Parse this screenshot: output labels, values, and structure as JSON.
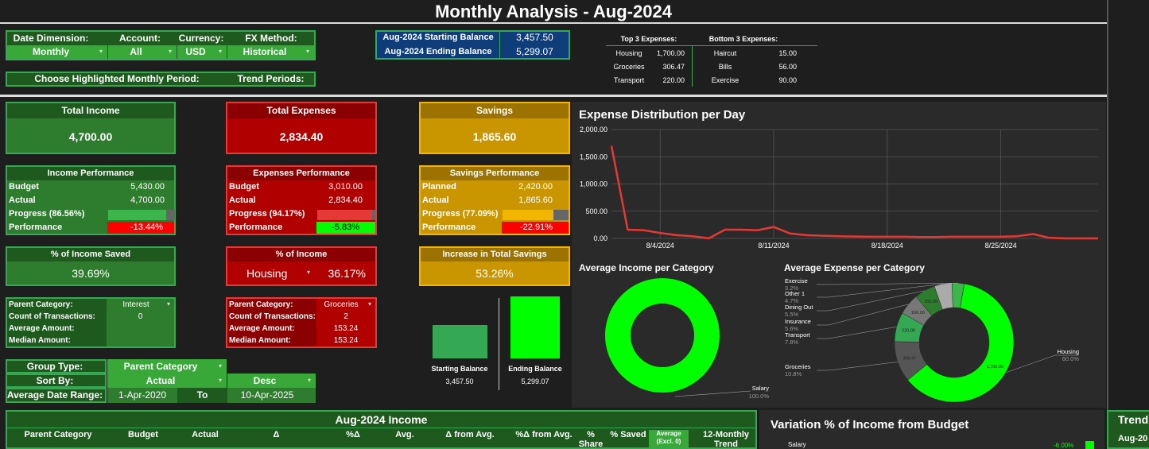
{
  "title": "Monthly Analysis - Aug-2024",
  "filters": {
    "date_dimension_label": "Date Dimension:",
    "date_dimension_value": "Monthly",
    "account_label": "Account:",
    "account_value": "All",
    "currency_label": "Currency:",
    "currency_value": "USD",
    "fx_label": "FX Method:",
    "fx_value": "Historical",
    "highlight_label": "Choose Highlighted Monthly Period:",
    "trend_label": "Trend Periods:"
  },
  "balance": {
    "start_label": "Aug-2024 Starting Balance",
    "start_value": "3,457.50",
    "end_label": "Aug-2024 Ending Balance",
    "end_value": "5,299.07"
  },
  "top3": {
    "label": "Top 3 Expenses:",
    "items": [
      {
        "name": "Housing",
        "value": "1,700.00"
      },
      {
        "name": "Groceries",
        "value": "306.47"
      },
      {
        "name": "Transport",
        "value": "220.00"
      }
    ]
  },
  "bottom3": {
    "label": "Bottom 3 Expenses:",
    "items": [
      {
        "name": "Haircut",
        "value": "15.00"
      },
      {
        "name": "Bills",
        "value": "56.00"
      },
      {
        "name": "Exercise",
        "value": "90.00"
      }
    ]
  },
  "totals": {
    "income_label": "Total Income",
    "income_value": "4,700.00",
    "expenses_label": "Total Expenses",
    "expenses_value": "2,834.40",
    "savings_label": "Savings",
    "savings_value": "1,865.60"
  },
  "income_perf": {
    "title": "Income Performance",
    "budget_label": "Budget",
    "budget_value": "5,430.00",
    "actual_label": "Actual",
    "actual_value": "4,700.00",
    "progress_label": "Progress (86.56%)",
    "progress_fraction": 0.8656,
    "performance_label": "Performance",
    "performance_value": "-13.44%"
  },
  "expense_perf": {
    "title": "Expenses Performance",
    "budget_label": "Budget",
    "budget_value": "3,010.00",
    "actual_label": "Actual",
    "actual_value": "2,834.40",
    "progress_label": "Progress (94.17%)",
    "progress_fraction": 0.9417,
    "performance_label": "Performance",
    "performance_value": "-5.83%"
  },
  "savings_perf": {
    "title": "Savings Performance",
    "planned_label": "Planned",
    "planned_value": "2,420.00",
    "actual_label": "Actual",
    "actual_value": "1,865.60",
    "progress_label": "Progress (77.09%)",
    "progress_fraction": 0.7709,
    "performance_label": "Performance",
    "performance_value": "-22.91%"
  },
  "pct_income_saved": {
    "label": "% of Income Saved",
    "value": "39.69%"
  },
  "pct_of_income": {
    "label": "% of Income",
    "category": "Housing",
    "value": "36.17%"
  },
  "increase_savings": {
    "label": "Increase in Total Savings",
    "value": "53.26%"
  },
  "income_cat": {
    "parent_label": "Parent Category:",
    "parent_value": "Interest",
    "count_label": "Count of Transactions:",
    "count_value": "0",
    "avg_label": "Average Amount:",
    "median_label": "Median Amount:"
  },
  "expense_cat": {
    "parent_label": "Parent Category:",
    "parent_value": "Groceries",
    "count_label": "Count of Transactions:",
    "count_value": "2",
    "avg_label": "Average Amount:",
    "avg_value": "153.24",
    "median_label": "Median Amount:",
    "median_value": "153.24"
  },
  "grouping": {
    "group_label": "Group Type:",
    "group_value": "Parent Category",
    "sort_label": "Sort By:",
    "sort_value": "Actual",
    "sort_dir": "Desc",
    "range_label": "Average Date Range:",
    "range_from": "1-Apr-2020",
    "range_to_label": "To",
    "range_to": "10-Apr-2025"
  },
  "balance_bars": {
    "start_label": "Starting Balance",
    "start_value": "3,457.50",
    "start_num": 3457.5,
    "end_label": "Ending Balance",
    "end_value": "5,299.07",
    "end_num": 5299.07
  },
  "income_table": {
    "title": "Aug-2024 Income",
    "headers": [
      "Parent Category",
      "Budget",
      "Actual",
      "Δ",
      "%Δ",
      "Avg.",
      "Δ from Avg.",
      "%Δ from Avg.",
      "% Share",
      "% Saved",
      "Average (Excl. 0)",
      "12-Monthly Trend"
    ]
  },
  "variation": {
    "title": "Variation % of Income from Budget",
    "row_label": "Salary",
    "row_value": "-6.00%"
  },
  "trend_side": {
    "title": "Trend",
    "row_label": "Aug-20"
  },
  "colors": {
    "bright_green": "#00ff00",
    "line_red": "#e53935",
    "gold": "#c99600",
    "dark_green": "#1e5a1e",
    "dark_red": "#8b0000"
  },
  "chart_data": [
    {
      "type": "line",
      "title": "Expense Distribution per Day",
      "x": [
        1,
        2,
        3,
        4,
        5,
        6,
        7,
        8,
        9,
        10,
        11,
        12,
        13,
        14,
        15,
        16,
        17,
        18,
        19,
        20,
        21,
        22,
        23,
        24,
        25,
        26,
        27,
        28,
        29,
        30,
        31
      ],
      "x_tick_labels": [
        "8/4/2024",
        "8/11/2024",
        "8/18/2024",
        "8/25/2024"
      ],
      "x_tick_days": [
        4,
        11,
        18,
        25
      ],
      "series": [
        {
          "name": "Expenses",
          "values": [
            1700,
            160,
            150,
            100,
            60,
            40,
            0,
            160,
            160,
            150,
            210,
            90,
            60,
            50,
            40,
            35,
            30,
            30,
            30,
            25,
            25,
            30,
            30,
            30,
            30,
            40,
            80,
            10,
            0,
            0,
            0
          ]
        }
      ],
      "ylim": [
        0,
        2000
      ],
      "y_ticks": [
        "0.00",
        "500.00",
        "1,000.00",
        "1,500.00",
        "2,000.00"
      ],
      "y_tick_values": [
        0,
        500,
        1000,
        1500,
        2000
      ]
    },
    {
      "type": "pie",
      "title": "Average Income per Category",
      "labels": [
        "Salary"
      ],
      "values": [
        100.0
      ],
      "label_texts": [
        "Salary"
      ],
      "pct_texts": [
        "100.0%"
      ]
    },
    {
      "type": "pie",
      "title": "Average Expense per Category",
      "labels": [
        "Housing",
        "Groceries",
        "Transport",
        "Insurance",
        "Dining Out",
        "Other 1",
        "Exercise"
      ],
      "values": [
        60.0,
        10.8,
        7.8,
        5.6,
        5.5,
        4.7,
        3.2
      ],
      "slice_values": [
        "1,700.00",
        "306.47",
        "220.00",
        "160.00",
        "155.00",
        "",
        ""
      ],
      "pct_texts": [
        "60.0%",
        "10.8%",
        "7.8%",
        "5.6%",
        "5.5%",
        "4.7%",
        "3.2%"
      ]
    }
  ]
}
